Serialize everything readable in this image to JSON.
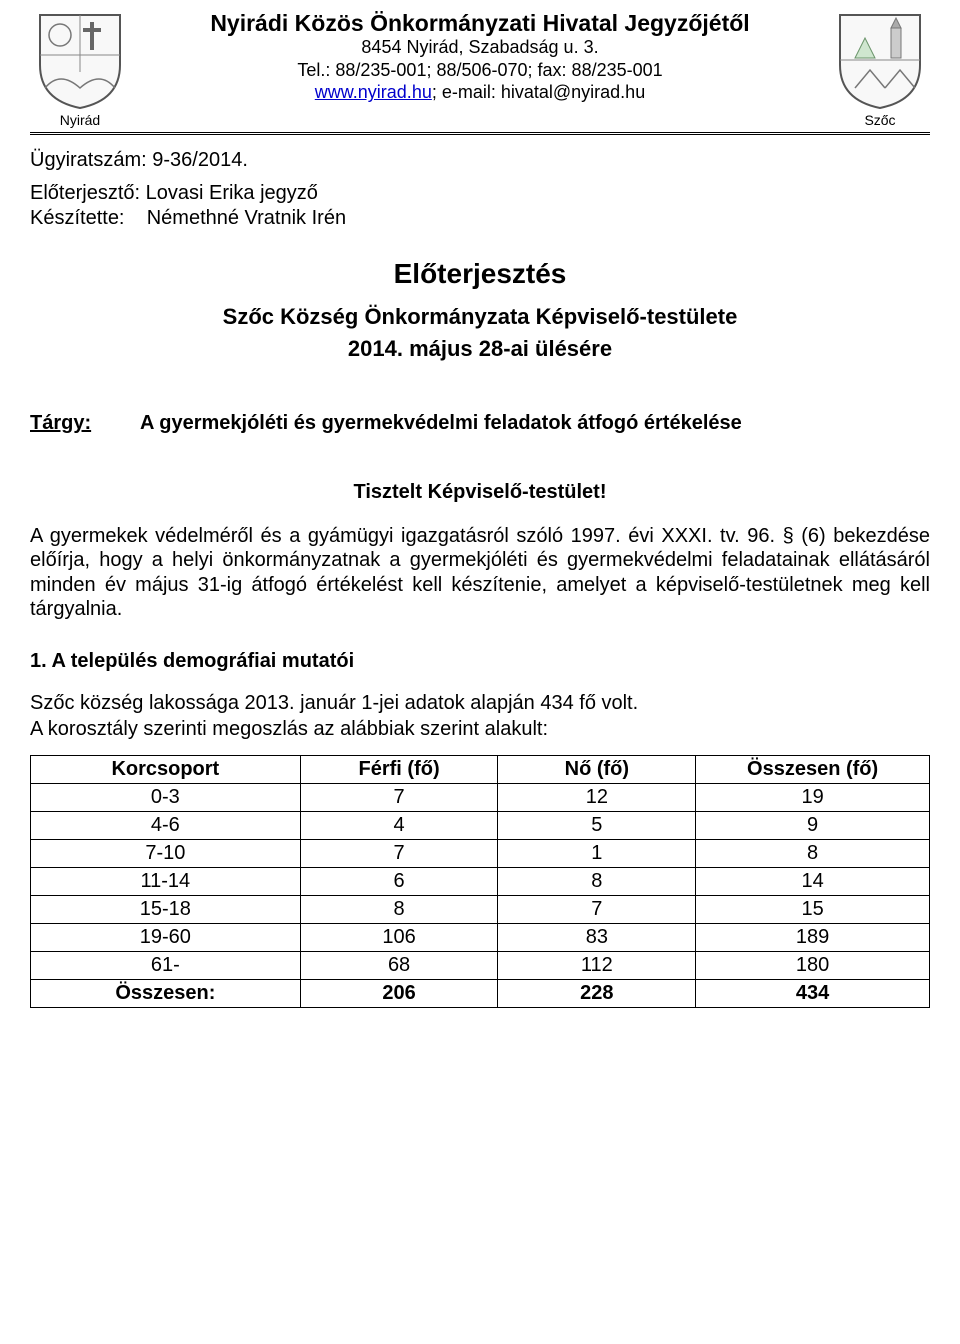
{
  "header": {
    "title": "Nyirádi Közös Önkormányzati Hivatal Jegyzőjétől",
    "address": "8454 Nyirád, Szabadság u. 3.",
    "tel": "Tel.: 88/235-001; 88/506-070; fax: 88/235-001",
    "website": "www.nyirad.hu",
    "email_sep": "; e-mail: hivatal@nyirad.hu",
    "left_label": "Nyirád",
    "right_label": "Szőc"
  },
  "meta": {
    "case_no": "Ügyiratszám: 9-36/2014.",
    "presenter": "Előterjesztő: Lovasi Erika jegyző",
    "author": "Készítette:    Némethné Vratnik Irén"
  },
  "titles": {
    "main": "Előterjesztés",
    "sub1": "Szőc Község Önkormányzata Képviselő-testülete",
    "sub2": "2014. május 28-ai ülésére"
  },
  "targy": {
    "label": "Tárgy:",
    "text": "A gyermekjóléti és gyermekvédelmi feladatok átfogó értékelése"
  },
  "tisztelt": "Tisztelt Képviselő-testület!",
  "body": "A gyermekek védelméről és a gyámügyi igazgatásról szóló 1997. évi XXXI. tv. 96. § (6) bekezdése előírja, hogy a helyi önkormányzatnak a gyermekjóléti és gyermekvédelmi feladatainak ellátásáról minden év május 31-ig átfogó értékelést kell készítenie, amelyet a képviselő-testületnek meg kell tárgyalnia.",
  "section1": {
    "head": "1. A település demográfiai mutatói",
    "line1": "Szőc község lakossága 2013. január 1-jei adatok alapján 434 fő volt.",
    "line2": "A korosztály szerinti megoszlás az alábbiak szerint alakult:"
  },
  "table": {
    "columns": [
      "Korcsoport",
      "Férfi (fő)",
      "Nő (fő)",
      "Összesen (fő)"
    ],
    "rows": [
      [
        "0-3",
        "7",
        "12",
        "19"
      ],
      [
        "4-6",
        "4",
        "5",
        "9"
      ],
      [
        "7-10",
        "7",
        "1",
        "8"
      ],
      [
        "11-14",
        "6",
        "8",
        "14"
      ],
      [
        "15-18",
        "8",
        "7",
        "15"
      ],
      [
        "19-60",
        "106",
        "83",
        "189"
      ],
      [
        "61-",
        "68",
        "112",
        "180"
      ]
    ],
    "total": [
      "Összesen:",
      "206",
      "228",
      "434"
    ],
    "col_widths": [
      "30%",
      "22%",
      "22%",
      "26%"
    ]
  },
  "colors": {
    "text": "#000000",
    "background": "#ffffff",
    "link": "#0000cc",
    "border": "#000000",
    "crest_outline": "#666666",
    "crest_fill": "#f2f2f2"
  }
}
